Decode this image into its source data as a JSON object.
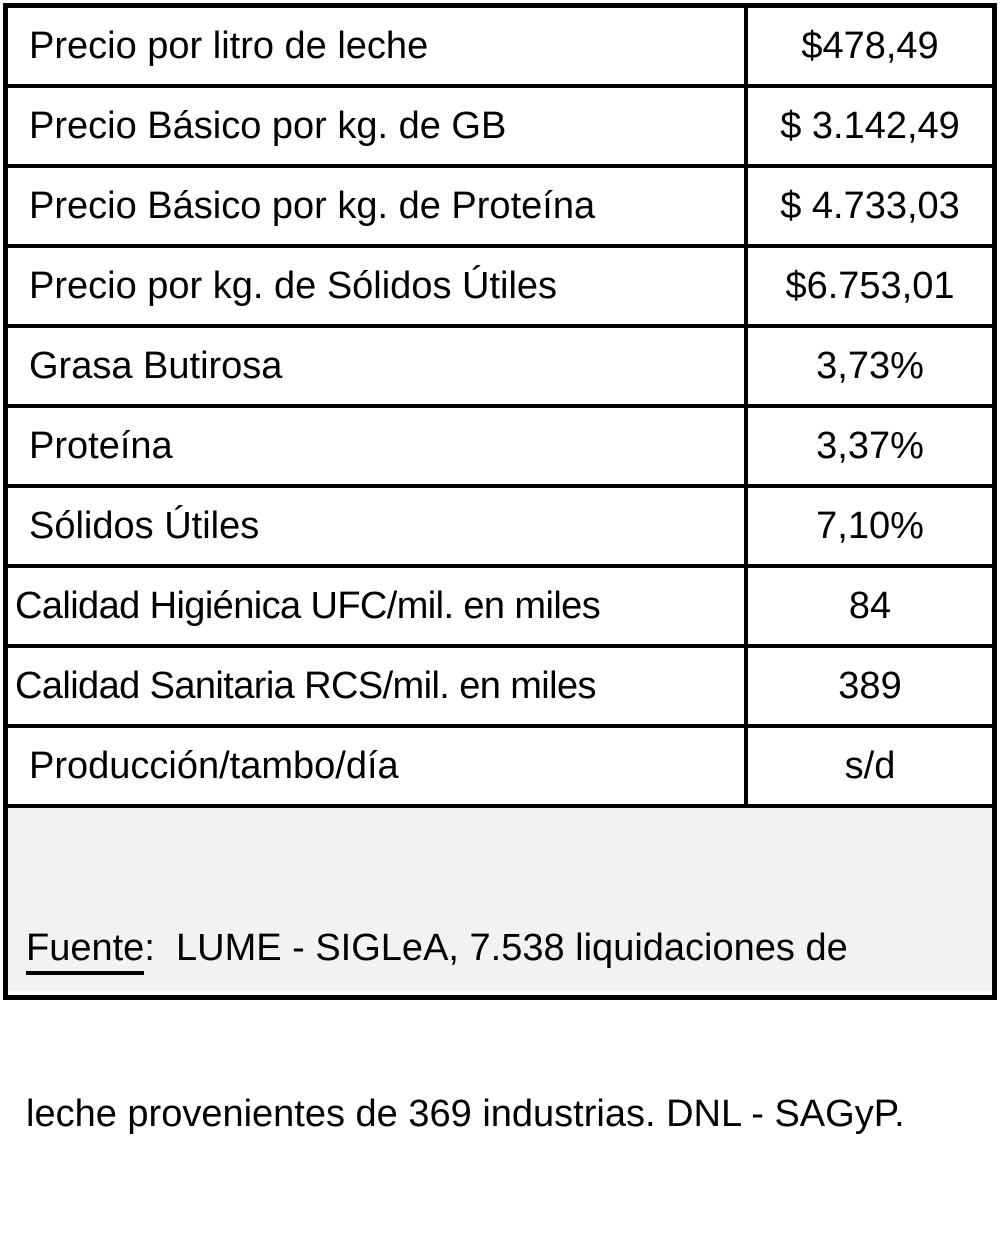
{
  "chart_data": {
    "type": "table",
    "title": "",
    "rows": [
      {
        "label": "Precio por litro de leche",
        "value": "$478,49"
      },
      {
        "label": "Precio Básico por kg. de GB",
        "value": "$ 3.142,49"
      },
      {
        "label": "Precio Básico por kg. de Proteína",
        "value": "$ 4.733,03"
      },
      {
        "label": "Precio por kg. de Sólidos Útiles",
        "value": "$6.753,01"
      },
      {
        "label": "Grasa Butirosa",
        "value": "3,73%"
      },
      {
        "label": "Proteína",
        "value": "3,37%"
      },
      {
        "label": "Sólidos Útiles",
        "value": "7,10%"
      },
      {
        "label": "Calidad Higiénica UFC/mil. en miles",
        "value": "84"
      },
      {
        "label": "Calidad Sanitaria RCS/mil. en miles",
        "value": "389"
      },
      {
        "label": "Producción/tambo/día",
        "value": "s/d"
      }
    ],
    "numeric_values": {
      "precio_litro_leche_pesos": 478.49,
      "precio_basico_kg_gb_pesos": 3142.49,
      "precio_basico_kg_proteina_pesos": 4733.03,
      "precio_kg_solidos_utiles_pesos": 6753.01,
      "grasa_butirosa_pct": 3.73,
      "proteina_pct": 3.37,
      "solidos_utiles_pct": 7.1,
      "calidad_higienica_ufc_mil_miles": 84,
      "calidad_sanitaria_rcs_mil_miles": 389,
      "produccion_tambo_dia": "s/d"
    }
  },
  "footer": {
    "source_label": "Fuente",
    "colon": ":",
    "line1_rest": "  LUME - SIGLeA, 7.538 liquidaciones de",
    "line2": "leche provenientes de 369 industrias. DNL - SAGyP."
  },
  "colors": {
    "border": "#000000",
    "row_background": "#ffffff",
    "footer_background": "#f2f2f2",
    "text": "#000000"
  }
}
